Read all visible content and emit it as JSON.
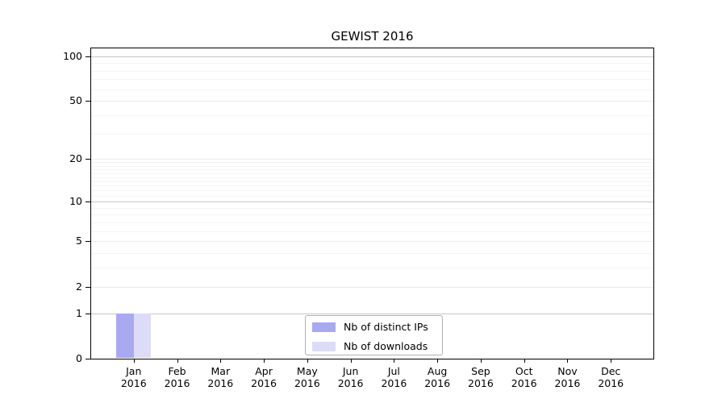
{
  "title": "GEWIST 2016",
  "colors": {
    "distinct_ips_bar": "#a9a9f1",
    "downloads_bar": "#dcdcf9",
    "grid_decade": "#c6c6c6",
    "grid_major_light": "#eaeaea",
    "grid_minor": "#f4f4f4",
    "axis": "#000000",
    "legend_border": "#b0b0b0"
  },
  "chart_data": {
    "type": "bar",
    "title": "GEWIST 2016",
    "categories": [
      "Jan 2016",
      "Feb 2016",
      "Mar 2016",
      "Apr 2016",
      "May 2016",
      "Jun 2016",
      "Jul 2016",
      "Aug 2016",
      "Sep 2016",
      "Oct 2016",
      "Nov 2016",
      "Dec 2016"
    ],
    "series": [
      {
        "name": "Nb of distinct IPs",
        "values": [
          1,
          0,
          0,
          0,
          0,
          0,
          0,
          0,
          0,
          0,
          0,
          0
        ]
      },
      {
        "name": "Nb of downloads",
        "values": [
          1,
          0,
          0,
          0,
          0,
          0,
          0,
          0,
          0,
          0,
          0,
          0
        ]
      }
    ],
    "y_axis": {
      "scale": "log10(1+value)",
      "tick_values": [
        0,
        1,
        2,
        5,
        10,
        20,
        50,
        100
      ],
      "tick_labels": [
        "0",
        "1",
        "2",
        "5",
        "10",
        "20",
        "50",
        "100"
      ],
      "minor_values": [
        3,
        4,
        6,
        7,
        8,
        9,
        11,
        12,
        13,
        14,
        15,
        16,
        17,
        18,
        19,
        30,
        40,
        60,
        70,
        80,
        90
      ],
      "decade_values": [
        1,
        10,
        100
      ],
      "ylim": [
        0,
        115
      ]
    },
    "grid": true,
    "legend_position": "lower center inside plot"
  }
}
